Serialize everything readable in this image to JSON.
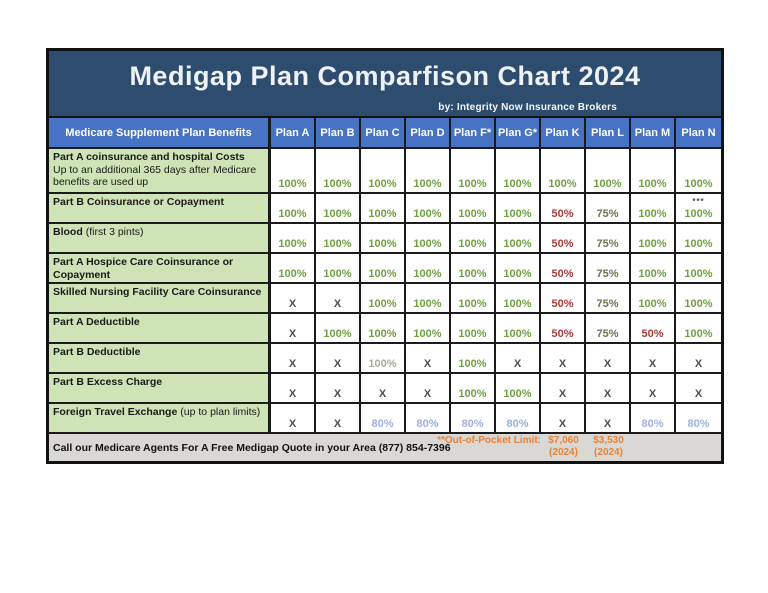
{
  "title": "Medigap Plan Comparfison Chart 2024",
  "subtitle": "by: Integrity Now Insurance Brokers",
  "header": {
    "benefits_label": "Medicare Supplement Plan Benefits",
    "plans": [
      "Plan A",
      "Plan B",
      "Plan C",
      "Plan D",
      "Plan F*",
      "Plan G*",
      "Plan K",
      "Plan L",
      "Plan M",
      "Plan N"
    ]
  },
  "rows": [
    {
      "label_bold": "Part A coinsurance and hospital Costs",
      "label_rest": "Up to an additional 365 days after Medicare benefits are used up",
      "tall": true,
      "values": [
        {
          "t": "100%",
          "c": "green"
        },
        {
          "t": "100%",
          "c": "green"
        },
        {
          "t": "100%",
          "c": "green"
        },
        {
          "t": "100%",
          "c": "green"
        },
        {
          "t": "100%",
          "c": "green"
        },
        {
          "t": "100%",
          "c": "green"
        },
        {
          "t": "100%",
          "c": "green"
        },
        {
          "t": "100%",
          "c": "green"
        },
        {
          "t": "100%",
          "c": "green"
        },
        {
          "t": "100%",
          "c": "green"
        }
      ]
    },
    {
      "label_bold": "Part B Coinsurance or Copayment",
      "label_rest": "",
      "values": [
        {
          "t": "100%",
          "c": "green"
        },
        {
          "t": "100%",
          "c": "green"
        },
        {
          "t": "100%",
          "c": "green"
        },
        {
          "t": "100%",
          "c": "green"
        },
        {
          "t": "100%",
          "c": "green"
        },
        {
          "t": "100%",
          "c": "green"
        },
        {
          "t": "50%",
          "c": "red"
        },
        {
          "t": "75%",
          "c": "olive"
        },
        {
          "t": "100%",
          "c": "green"
        },
        {
          "t": "100%",
          "c": "green",
          "note": "***"
        }
      ]
    },
    {
      "label_bold": "Blood",
      "label_rest": "(first 3 pints)",
      "values": [
        {
          "t": "100%",
          "c": "green"
        },
        {
          "t": "100%",
          "c": "green"
        },
        {
          "t": "100%",
          "c": "green"
        },
        {
          "t": "100%",
          "c": "green"
        },
        {
          "t": "100%",
          "c": "green"
        },
        {
          "t": "100%",
          "c": "green"
        },
        {
          "t": "50%",
          "c": "red"
        },
        {
          "t": "75%",
          "c": "olive"
        },
        {
          "t": "100%",
          "c": "green"
        },
        {
          "t": "100%",
          "c": "green"
        }
      ]
    },
    {
      "label_bold": "Part A Hospice Care Coinsurance or Copayment",
      "label_rest": "",
      "values": [
        {
          "t": "100%",
          "c": "green"
        },
        {
          "t": "100%",
          "c": "green"
        },
        {
          "t": "100%",
          "c": "green"
        },
        {
          "t": "100%",
          "c": "green"
        },
        {
          "t": "100%",
          "c": "green"
        },
        {
          "t": "100%",
          "c": "green"
        },
        {
          "t": "50%",
          "c": "red"
        },
        {
          "t": "75%",
          "c": "olive"
        },
        {
          "t": "100%",
          "c": "green"
        },
        {
          "t": "100%",
          "c": "green"
        }
      ]
    },
    {
      "label_bold": "Skilled Nursing Facility Care Coinsurance",
      "label_rest": "",
      "values": [
        {
          "t": "X",
          "c": "x"
        },
        {
          "t": "X",
          "c": "x"
        },
        {
          "t": "100%",
          "c": "green"
        },
        {
          "t": "100%",
          "c": "green"
        },
        {
          "t": "100%",
          "c": "green"
        },
        {
          "t": "100%",
          "c": "green"
        },
        {
          "t": "50%",
          "c": "red"
        },
        {
          "t": "75%",
          "c": "olive"
        },
        {
          "t": "100%",
          "c": "green"
        },
        {
          "t": "100%",
          "c": "green"
        }
      ]
    },
    {
      "label_bold": "Part A Deductible",
      "label_rest": "",
      "values": [
        {
          "t": "X",
          "c": "x"
        },
        {
          "t": "100%",
          "c": "green"
        },
        {
          "t": "100%",
          "c": "green"
        },
        {
          "t": "100%",
          "c": "green"
        },
        {
          "t": "100%",
          "c": "green"
        },
        {
          "t": "100%",
          "c": "green"
        },
        {
          "t": "50%",
          "c": "red"
        },
        {
          "t": "75%",
          "c": "olive"
        },
        {
          "t": "50%",
          "c": "red"
        },
        {
          "t": "100%",
          "c": "green"
        }
      ]
    },
    {
      "label_bold": "Part B Deductible",
      "label_rest": "",
      "values": [
        {
          "t": "X",
          "c": "x"
        },
        {
          "t": "X",
          "c": "x"
        },
        {
          "t": "100%",
          "c": "gray"
        },
        {
          "t": "X",
          "c": "x"
        },
        {
          "t": "100%",
          "c": "green"
        },
        {
          "t": "X",
          "c": "x"
        },
        {
          "t": "X",
          "c": "x"
        },
        {
          "t": "X",
          "c": "x"
        },
        {
          "t": "X",
          "c": "x"
        },
        {
          "t": "X",
          "c": "x"
        }
      ]
    },
    {
      "label_bold": "Part B Excess Charge",
      "label_rest": "",
      "values": [
        {
          "t": "X",
          "c": "x"
        },
        {
          "t": "X",
          "c": "x"
        },
        {
          "t": "X",
          "c": "x"
        },
        {
          "t": "X",
          "c": "x"
        },
        {
          "t": "100%",
          "c": "green"
        },
        {
          "t": "100%",
          "c": "green"
        },
        {
          "t": "X",
          "c": "x"
        },
        {
          "t": "X",
          "c": "x"
        },
        {
          "t": "X",
          "c": "x"
        },
        {
          "t": "X",
          "c": "x"
        }
      ]
    },
    {
      "label_bold": "Foreign Travel Exchange",
      "label_rest": "(up to plan limits)",
      "values": [
        {
          "t": "X",
          "c": "x"
        },
        {
          "t": "X",
          "c": "x"
        },
        {
          "t": "80%",
          "c": "blue"
        },
        {
          "t": "80%",
          "c": "blue"
        },
        {
          "t": "80%",
          "c": "blue"
        },
        {
          "t": "80%",
          "c": "blue"
        },
        {
          "t": "X",
          "c": "x"
        },
        {
          "t": "X",
          "c": "x"
        },
        {
          "t": "80%",
          "c": "blue"
        },
        {
          "t": "80%",
          "c": "blue"
        }
      ]
    }
  ],
  "footer": {
    "call_text": "Call our Medicare Agents For A Free Medigap Quote in your Area (877) 854-7396",
    "oop_label": "**Out-of-Pocket Limit:",
    "limits": [
      {
        "amount": "$7,060",
        "year": "(2024)"
      },
      {
        "amount": "$3,530",
        "year": "(2024)"
      }
    ]
  },
  "colors": {
    "title_bg": "#2e4d6e",
    "title_text": "#eef2f7",
    "header_bg": "#4673c4",
    "label_bg": "#cee3b6",
    "footer_bg": "#d9d8d4",
    "line": "#1b1b1b",
    "green": "#71a044",
    "red": "#a83a3a",
    "olive": "#6e744f",
    "value_gray": "#a8ad9b",
    "x_gray": "#4d4d4d",
    "blue": "#a0b1e0",
    "orange": "#e8833a"
  }
}
